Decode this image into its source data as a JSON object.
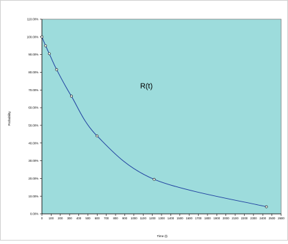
{
  "chart_data": {
    "type": "line",
    "title": "",
    "annotation": "R(t)",
    "xlabel": "Time (t)",
    "ylabel": "Probability",
    "xlim": [
      0,
      2600
    ],
    "ylim": [
      0,
      1.1
    ],
    "grid": false,
    "legend": "none",
    "x_ticks": [
      "0",
      "100",
      "200",
      "300",
      "400",
      "500",
      "600",
      "700",
      "800",
      "900",
      "1000",
      "1100",
      "1200",
      "1300",
      "1400",
      "1500",
      "1600",
      "1700",
      "1800",
      "1900",
      "2000",
      "2100",
      "2200",
      "2300",
      "2400",
      "2500",
      "2600"
    ],
    "y_ticks": [
      "0.00%",
      "10.00%",
      "20.00%",
      "30.00%",
      "40.00%",
      "50.00%",
      "60.00%",
      "70.00%",
      "80.00%",
      "90.00%",
      "100.00%",
      "110.00%"
    ],
    "series": [
      {
        "points": [
          {
            "x": 0,
            "y": 1.0
          },
          {
            "x": 40,
            "y": 0.95
          },
          {
            "x": 80,
            "y": 0.905
          },
          {
            "x": 160,
            "y": 0.815
          },
          {
            "x": 320,
            "y": 0.665
          },
          {
            "x": 600,
            "y": 0.44
          },
          {
            "x": 1220,
            "y": 0.195
          },
          {
            "x": 2440,
            "y": 0.04
          }
        ]
      }
    ],
    "colors": {
      "plot_background": "#9ddcdc",
      "line": "#1f3f9f",
      "marker_fill": "#ffffff",
      "marker_stroke": "#000000"
    }
  }
}
